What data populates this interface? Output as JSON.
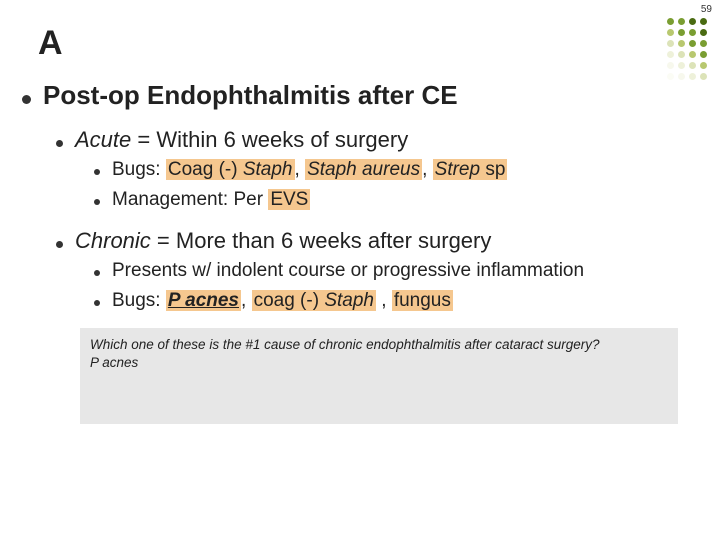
{
  "page_number": "59",
  "slide_letter": "A",
  "heading": "Post-op Endophthalmitis after CE",
  "acute": {
    "label_ital": "Acute",
    "label_rest": " = Within 6 weeks of surgery",
    "bugs_prefix": "Bugs: ",
    "bugs_1": "Coag (-) ",
    "bugs_1_it": "Staph",
    "bugs_sep1": ", ",
    "bugs_2_it": "Staph aureus",
    "bugs_sep2": ", ",
    "bugs_3_it": "Strep",
    "bugs_3_rest": " sp",
    "mgmt_prefix": "Management: Per ",
    "mgmt_hl": "EVS"
  },
  "chronic": {
    "label_ital": "Chronic",
    "label_rest": " = More than 6 weeks after surgery",
    "line1": "Presents w/ indolent course or progressive inflammation",
    "bugs_prefix": "Bugs: ",
    "bugs_1": "P acnes",
    "bugs_sep1": ", ",
    "bugs_2a": "coag (-) ",
    "bugs_2b_it": "Staph",
    "bugs_sep2": " , ",
    "bugs_3": "fungus"
  },
  "qa": {
    "question": "Which one of these is the #1 cause of chronic endophthalmitis after cataract surgery?",
    "answer": "P acnes"
  },
  "deco_colors": [
    "#7a9e32",
    "#7a9e32",
    "#4a6b12",
    "#4a6b12",
    "#b8c86f",
    "#7a9e32",
    "#7a9e32",
    "#4a6b12",
    "#dce3b8",
    "#b8c86f",
    "#7a9e32",
    "#7a9e32",
    "#eef1da",
    "#dce3b8",
    "#b8c86f",
    "#7a9e32",
    "#f7f8ed",
    "#eef1da",
    "#dce3b8",
    "#b8c86f",
    "#fbfcf5",
    "#f7f8ed",
    "#eef1da",
    "#dce3b8"
  ],
  "colors": {
    "highlight": "#f5c78f",
    "qa_bg": "#e7e7e7",
    "text": "#222222"
  }
}
